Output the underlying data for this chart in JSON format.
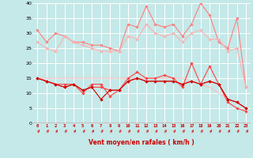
{
  "x": [
    0,
    1,
    2,
    3,
    4,
    5,
    6,
    7,
    8,
    9,
    10,
    11,
    12,
    13,
    14,
    15,
    16,
    17,
    18,
    19,
    20,
    21,
    22,
    23
  ],
  "series": [
    {
      "color": "#FF8080",
      "alpha": 1.0,
      "lw": 0.8,
      "marker": "D",
      "ms": 1.8,
      "y": [
        31,
        27,
        30,
        29,
        27,
        27,
        26,
        26,
        25,
        24,
        33,
        32,
        39,
        33,
        32,
        33,
        29,
        33,
        40,
        36,
        27,
        25,
        35,
        12
      ]
    },
    {
      "color": "#FFB0B0",
      "alpha": 1.0,
      "lw": 0.8,
      "marker": "D",
      "ms": 1.8,
      "y": [
        27,
        25,
        24,
        29,
        27,
        26,
        25,
        24,
        24,
        24,
        29,
        28,
        33,
        30,
        29,
        30,
        27,
        30,
        31,
        28,
        28,
        24,
        25,
        12
      ]
    },
    {
      "color": "#FFBBBB",
      "alpha": 1.0,
      "lw": 0.8,
      "marker": null,
      "ms": 0,
      "y": [
        15,
        15,
        15,
        15,
        15,
        15,
        15,
        15,
        15,
        15,
        15,
        15,
        15,
        15,
        15,
        15,
        15,
        14,
        13,
        12,
        10,
        8,
        7,
        5
      ]
    },
    {
      "color": "#FF4444",
      "alpha": 1.0,
      "lw": 0.8,
      "marker": "D",
      "ms": 1.8,
      "y": [
        15,
        14,
        13,
        13,
        13,
        10,
        13,
        13,
        9,
        11,
        15,
        17,
        15,
        15,
        16,
        15,
        12,
        20,
        13,
        19,
        13,
        7,
        5,
        4
      ]
    },
    {
      "color": "#FF4444",
      "alpha": 1.0,
      "lw": 0.8,
      "marker": "D",
      "ms": 1.8,
      "y": [
        15,
        14,
        13,
        12,
        13,
        11,
        12,
        12,
        11,
        11,
        14,
        15,
        14,
        14,
        14,
        14,
        13,
        14,
        13,
        14,
        13,
        8,
        7,
        5
      ]
    },
    {
      "color": "#CC0000",
      "alpha": 1.0,
      "lw": 0.8,
      "marker": "D",
      "ms": 1.8,
      "y": [
        15,
        14,
        13,
        12,
        13,
        11,
        12,
        8,
        11,
        11,
        14,
        15,
        14,
        14,
        14,
        14,
        13,
        14,
        13,
        14,
        13,
        8,
        7,
        5
      ]
    }
  ],
  "xlabel": "Vent moyen/en rafales ( km/h )",
  "xlim": [
    -0.5,
    23.5
  ],
  "ylim": [
    0,
    40
  ],
  "yticks": [
    0,
    5,
    10,
    15,
    20,
    25,
    30,
    35,
    40
  ],
  "xticks": [
    0,
    1,
    2,
    3,
    4,
    5,
    6,
    7,
    8,
    9,
    10,
    11,
    12,
    13,
    14,
    15,
    16,
    17,
    18,
    19,
    20,
    21,
    22,
    23
  ],
  "bg_color": "#C5E8E8",
  "grid_color": "#FFFFFF",
  "arrow_color": "#DD2222",
  "label_color": "#CC0000"
}
